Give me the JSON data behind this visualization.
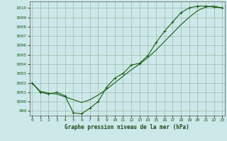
{
  "xlabel": "Graphe pression niveau de la mer (hPa)",
  "bg_color": "#cce8e8",
  "grid_color": "#99bbaa",
  "line_color": "#1a5c1a",
  "ylim": [
    998.5,
    1010.7
  ],
  "xlim": [
    -0.3,
    23.3
  ],
  "yticks": [
    999,
    1000,
    1001,
    1002,
    1003,
    1004,
    1005,
    1006,
    1007,
    1008,
    1009,
    1010
  ],
  "xticks": [
    0,
    1,
    2,
    3,
    4,
    5,
    6,
    7,
    8,
    9,
    10,
    11,
    12,
    13,
    14,
    15,
    16,
    17,
    18,
    19,
    20,
    21,
    22,
    23
  ],
  "series1": [
    1002.0,
    1001.0,
    1000.8,
    1001.0,
    1000.6,
    998.8,
    998.7,
    999.3,
    1000.0,
    1001.5,
    1002.5,
    1003.0,
    1003.9,
    1004.1,
    1004.9,
    1006.3,
    1007.5,
    1008.5,
    1009.5,
    1010.0,
    1010.2,
    1010.2,
    1010.1,
    1010.0
  ],
  "series2": [
    1002.0,
    1001.1,
    1000.9,
    1000.8,
    1000.5,
    1000.2,
    999.9,
    1000.2,
    1000.7,
    1001.3,
    1002.0,
    1002.7,
    1003.4,
    1004.0,
    1004.7,
    1005.5,
    1006.4,
    1007.3,
    1008.2,
    1009.0,
    1009.7,
    1010.1,
    1010.2,
    1010.0
  ]
}
